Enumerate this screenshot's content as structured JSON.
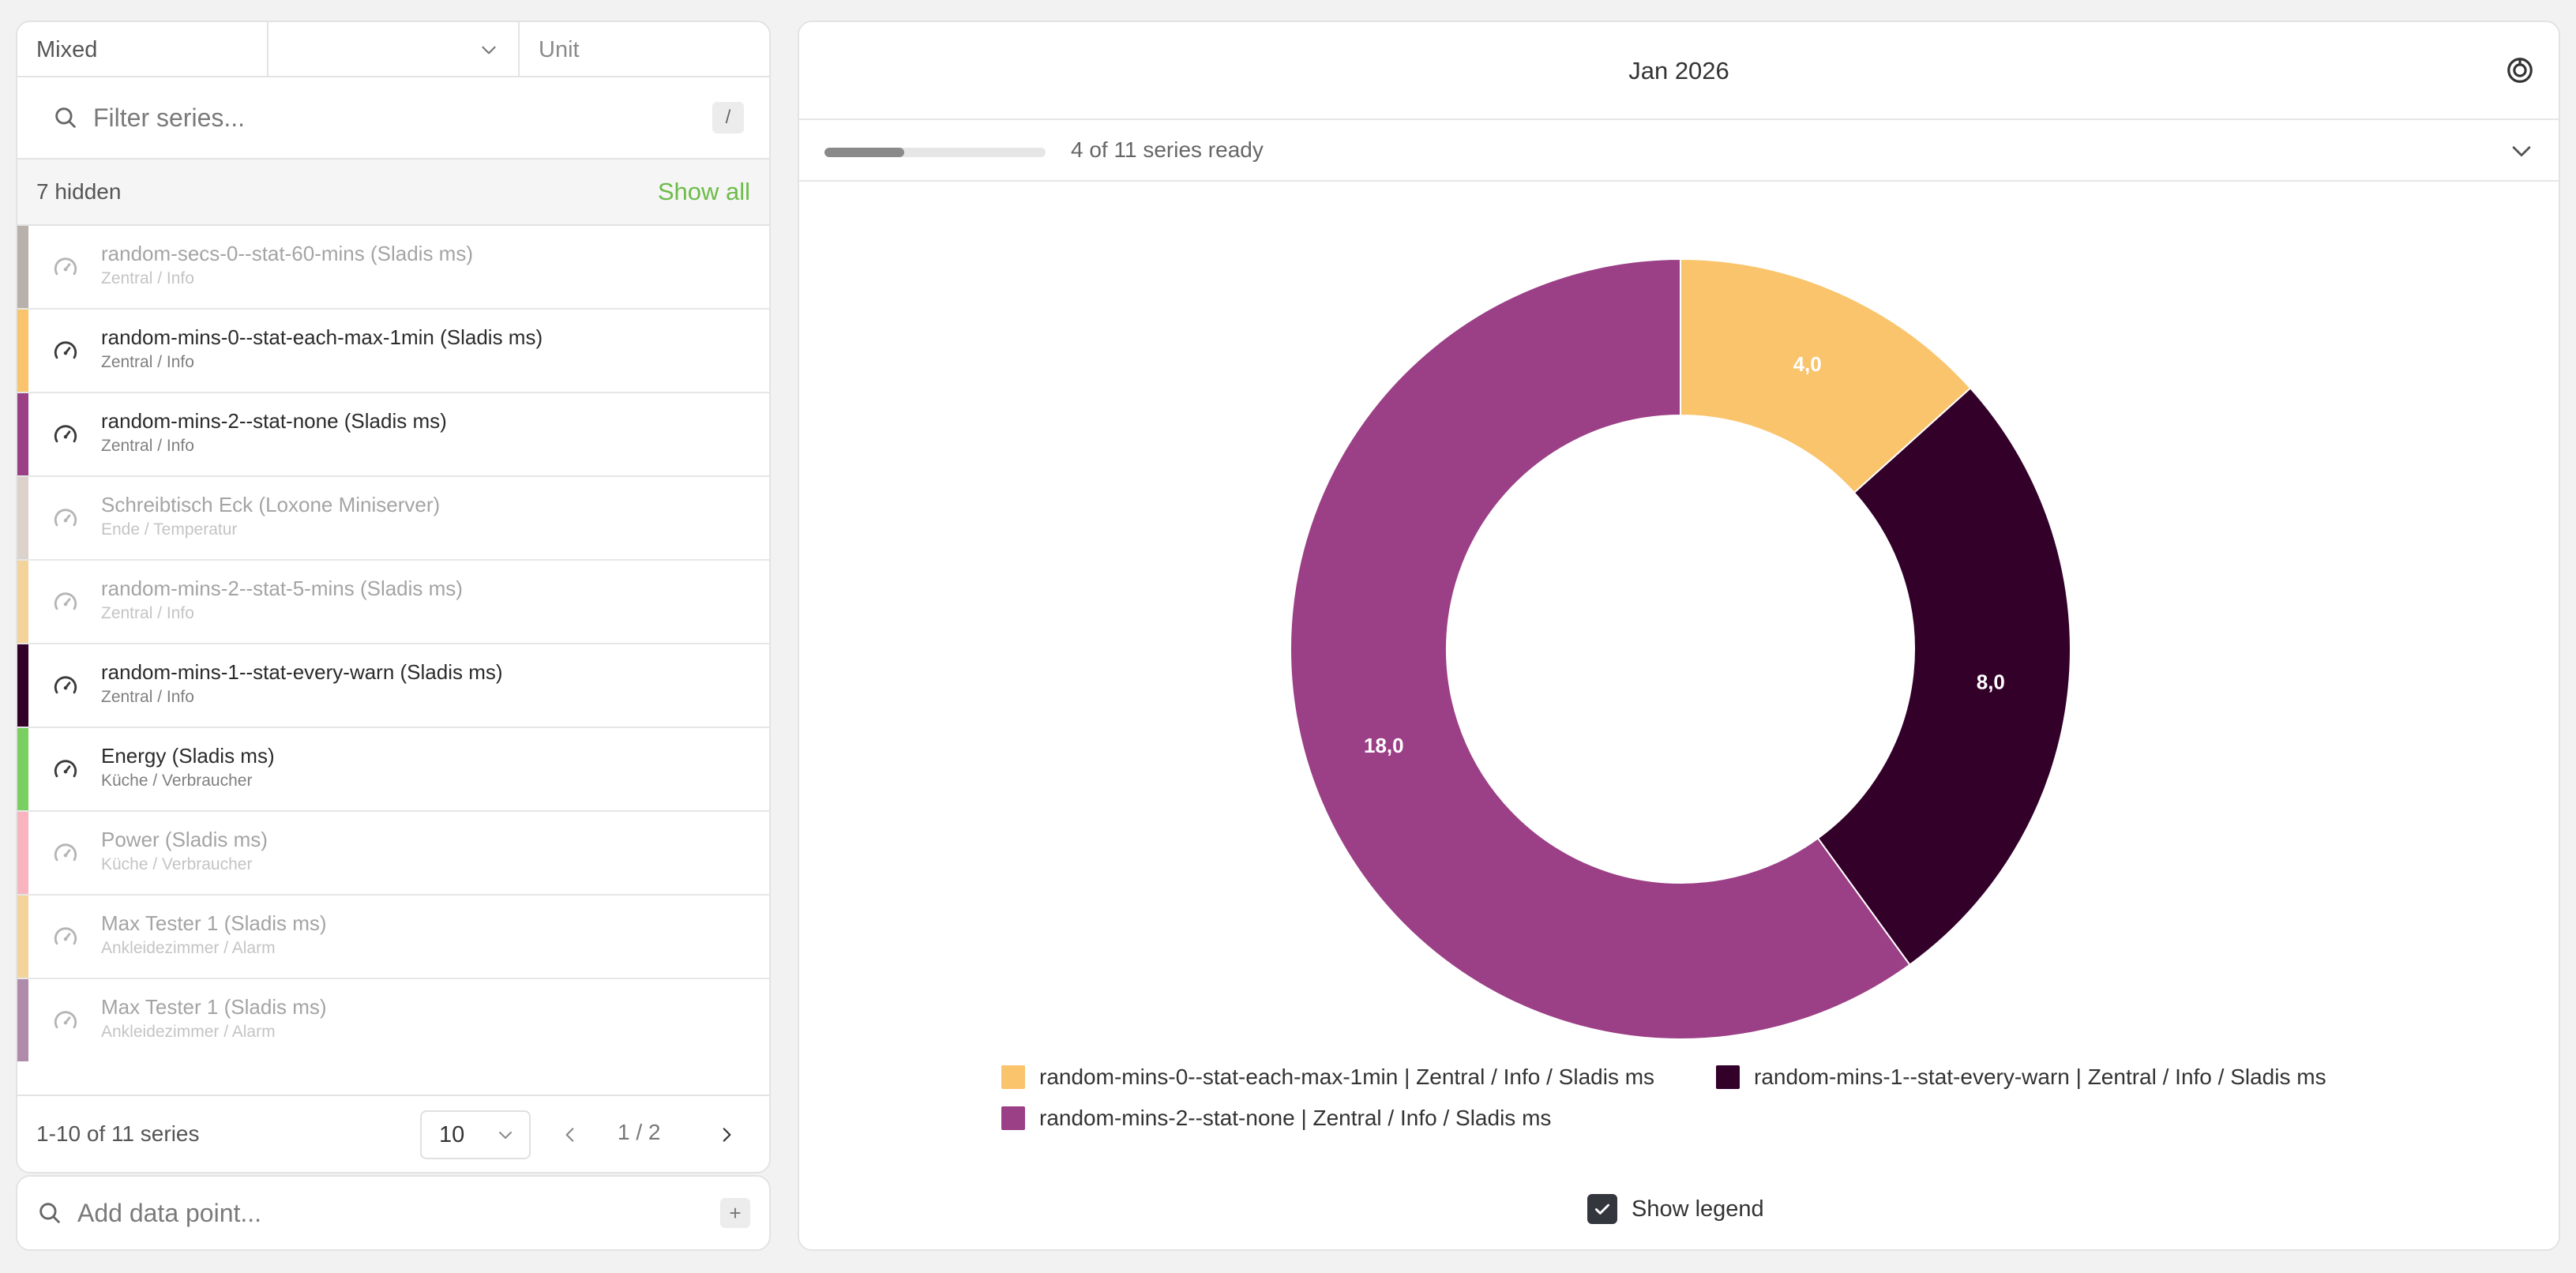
{
  "sidebar": {
    "select_mode": "Mixed",
    "select_middle": "",
    "select_unit_placeholder": "Unit",
    "filter_placeholder": "Filter series...",
    "filter_shortcut": "/",
    "hidden_count": "7 hidden",
    "show_all_label": "Show all",
    "series": [
      {
        "title": "random-secs-0--stat-60-mins (Sladis ms)",
        "sub": "Zentral / Info",
        "color": "#b7b0ab",
        "visible": false
      },
      {
        "title": "random-mins-0--stat-each-max-1min (Sladis ms)",
        "sub": "Zentral / Info",
        "color": "#f9c46b",
        "visible": true
      },
      {
        "title": "random-mins-2--stat-none (Sladis ms)",
        "sub": "Zentral / Info",
        "color": "#9b3f86",
        "visible": true
      },
      {
        "title": "Schreibtisch Eck (Loxone Miniserver)",
        "sub": "Ende / Temperatur",
        "color": "#dcd2cc",
        "visible": false
      },
      {
        "title": "random-mins-2--stat-5-mins (Sladis ms)",
        "sub": "Zentral / Info",
        "color": "#f3d39a",
        "visible": false
      },
      {
        "title": "random-mins-1--stat-every-warn (Sladis ms)",
        "sub": "Zentral / Info",
        "color": "#33002a",
        "visible": true
      },
      {
        "title": "Energy (Sladis ms)",
        "sub": "Küche / Verbraucher",
        "color": "#79cf60",
        "visible": true
      },
      {
        "title": "Power (Sladis ms)",
        "sub": "Küche / Verbraucher",
        "color": "#f8b4bf",
        "visible": false
      },
      {
        "title": "Max Tester 1 (Sladis ms)",
        "sub": "Ankleidezimmer / Alarm",
        "color": "#f3d39a",
        "visible": false
      },
      {
        "title": "Max Tester 1 (Sladis ms)",
        "sub": "Ankleidezimmer / Alarm",
        "color": "#b08aab",
        "visible": false
      }
    ],
    "footer": {
      "range_label": "1-10 of 11 series",
      "page_size": "10",
      "page_label": "1 / 2"
    },
    "add_placeholder": "Add data point...",
    "add_shortcut": "+"
  },
  "main": {
    "title": "Jan 2026",
    "progress_text": "4 of 11 series ready",
    "progress_fraction": 0.36,
    "show_legend_label": "Show legend",
    "show_legend_checked": true
  },
  "chart_data": {
    "type": "pie",
    "donut": true,
    "categories": [
      "random-mins-0--stat-each-max-1min | Zentral / Info / Sladis ms",
      "random-mins-1--stat-every-warn | Zentral / Info / Sladis ms",
      "random-mins-2--stat-none | Zentral / Info / Sladis ms"
    ],
    "values": [
      4.0,
      8.0,
      18.0
    ],
    "value_labels": [
      "4,0",
      "8,0",
      "18,0"
    ],
    "colors": [
      "#f9c46b",
      "#33002a",
      "#9b3f86"
    ],
    "legend_position": "bottom"
  }
}
